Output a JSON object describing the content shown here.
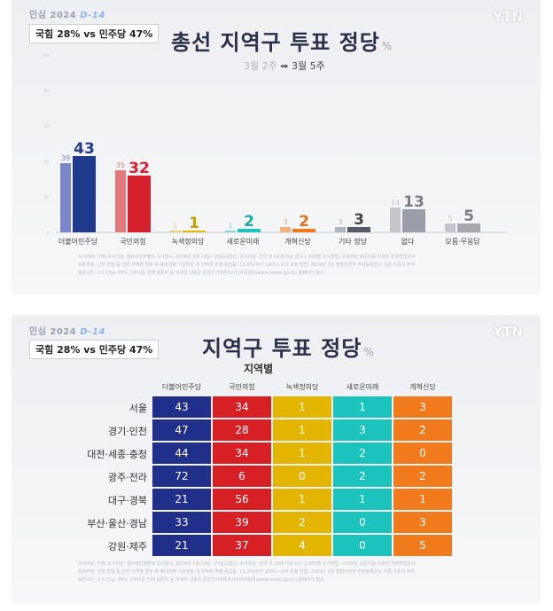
{
  "badge": {
    "text": "민심 2024",
    "dday": "D-14"
  },
  "tag": "국힘 28% vs 민주당 47%",
  "logo": "YTN",
  "panel1": {
    "title": "총선 지역구 투표 정당",
    "unit": "%",
    "period_from": "3월 2주",
    "period_arrow": "➡",
    "period_to": "3월 5주",
    "footnotes": [
      "조사의뢰: YTN    조사기관: 엠브레인퍼블릭    조사일시: 2024년 3월 24일~25일(2일간)    조사대상: 전국 만 18세 이상 남녀 1,003명    조사방법: 구조화된 설문지를 이용한 전화면접조사",
      "표본추출: 선정 방법 등 관련 지역별 할당 후 휴대전화 가상번호 내 무작위 추출    응답률: 13.3%(무선 100%)    오차 보정 방법: 2024년 2월 행정안전부 주민등록인구 기준 가중치 부여",
      "표본오차: ±3.1%p, 95% 신뢰수준    전체 질문지 등 자세한 내용은 중앙선거여론조사심의위원회(www.nesdc.go.kr) 홈페이지 참조"
    ]
  },
  "panel2": {
    "title": "지역구 투표 정당",
    "unit": "%",
    "subtitle": "지역별",
    "footnotes": [
      "조사의뢰: YTN    조사기관: 엠브레인퍼블릭    조사일시: 2024년 3월 24일~25일(2일간)    조사대상: 전국 만 18세 이상 남녀 1,003명    조사방법: 구조화된 설문지를 이용한 전화면접조사",
      "표본추출: 선정 방법 등 관련 지역별 할당 후 휴대전화 가상번호 내 무작위 추출    응답률: 13.3%(무선 100%)    오차 보정 방법: 2024년 2월 행정안전부 주민등록인구 기준 가중치 부여",
      "표본오차: ±3.1%p, 95% 신뢰수준    전체 질문지 등 자세한 내용은 중앙선거여론조사심의위원회(www.nesdc.go.kr) 홈페이지 참조"
    ]
  },
  "chart_data": [
    {
      "type": "bar",
      "categories": [
        "더불어민주당",
        "국민의힘",
        "녹색정의당",
        "새로운미래",
        "개혁신당",
        "기타 정당",
        "없다",
        "모름·무응답"
      ],
      "series": [
        {
          "name": "3월 2주",
          "values": [
            39,
            35,
            1,
            1,
            3,
            3,
            14,
            5
          ]
        },
        {
          "name": "3월 5주",
          "values": [
            43,
            32,
            1,
            2,
            2,
            3,
            13,
            5
          ]
        }
      ],
      "ylim": [
        0,
        100
      ],
      "colors_prev": [
        "#7b86c8",
        "#e07a7a",
        "#e8d07a",
        "#8ad6d2",
        "#f2b07a",
        "#b0b4bc",
        "#c4c6cc",
        "#c4c6cc"
      ],
      "colors_cur": [
        "#1f3a8a",
        "#d61f2c",
        "#e6b800",
        "#1fc2bc",
        "#f07a1f",
        "#555a66",
        "#9a9ea8",
        "#a6a9b0"
      ],
      "label_colors": [
        "#1f3a8a",
        "#d61f2c",
        "#c79f00",
        "#1aa9a4",
        "#e0701f",
        "#444",
        "#7a7e88",
        "#7a7e88"
      ]
    },
    {
      "type": "table",
      "columns": [
        "더불어민주당",
        "국민의힘",
        "녹색정의당",
        "새로운미래",
        "개혁신당"
      ],
      "rows": [
        "서울",
        "경기·인천",
        "대전·세종·충청",
        "광주·전라",
        "대구·경북",
        "부산·울산·경남",
        "강원·제주"
      ],
      "values": [
        [
          43,
          34,
          1,
          1,
          3
        ],
        [
          47,
          28,
          1,
          3,
          2
        ],
        [
          44,
          34,
          1,
          2,
          0
        ],
        [
          72,
          6,
          0,
          2,
          2
        ],
        [
          21,
          56,
          1,
          1,
          1
        ],
        [
          33,
          39,
          2,
          0,
          3
        ],
        [
          21,
          37,
          4,
          0,
          5
        ]
      ],
      "colors": [
        "#1f2f8a",
        "#d71f26",
        "#e3b400",
        "#1cc3bd",
        "#f07a1c"
      ]
    }
  ]
}
